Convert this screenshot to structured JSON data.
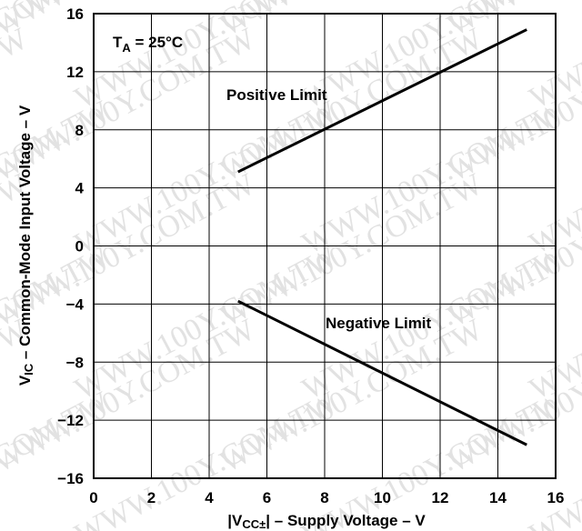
{
  "chart_data": {
    "type": "line",
    "xlabel": "|V<sub>CC±</sub>| – Supply Voltage – V",
    "ylabel": "V<sub>IC</sub> – Common-Mode Input Voltage – V",
    "xlim": [
      0,
      16
    ],
    "ylim": [
      -16,
      16
    ],
    "x_ticks": [
      "0",
      "2",
      "4",
      "6",
      "8",
      "10",
      "12",
      "14",
      "16"
    ],
    "y_ticks": [
      "16",
      "12",
      "8",
      "4",
      "0",
      "−4",
      "−8",
      "−12",
      "−16"
    ],
    "grid": true,
    "annotation": {
      "T_symbol": "T",
      "T_subscript": "A",
      "T_value": "= 25°C"
    },
    "series": [
      {
        "name": "Positive Limit",
        "x": [
          5,
          15
        ],
        "y": [
          5.1,
          14.9
        ]
      },
      {
        "name": "Negative Limit",
        "x": [
          5,
          15
        ],
        "y": [
          -3.8,
          -13.7
        ]
      }
    ]
  },
  "watermark": "WWW.100Y.COM.TW",
  "colors": {
    "line": "#000000",
    "grid": "#000000",
    "watermark": "#e2e2e2"
  }
}
